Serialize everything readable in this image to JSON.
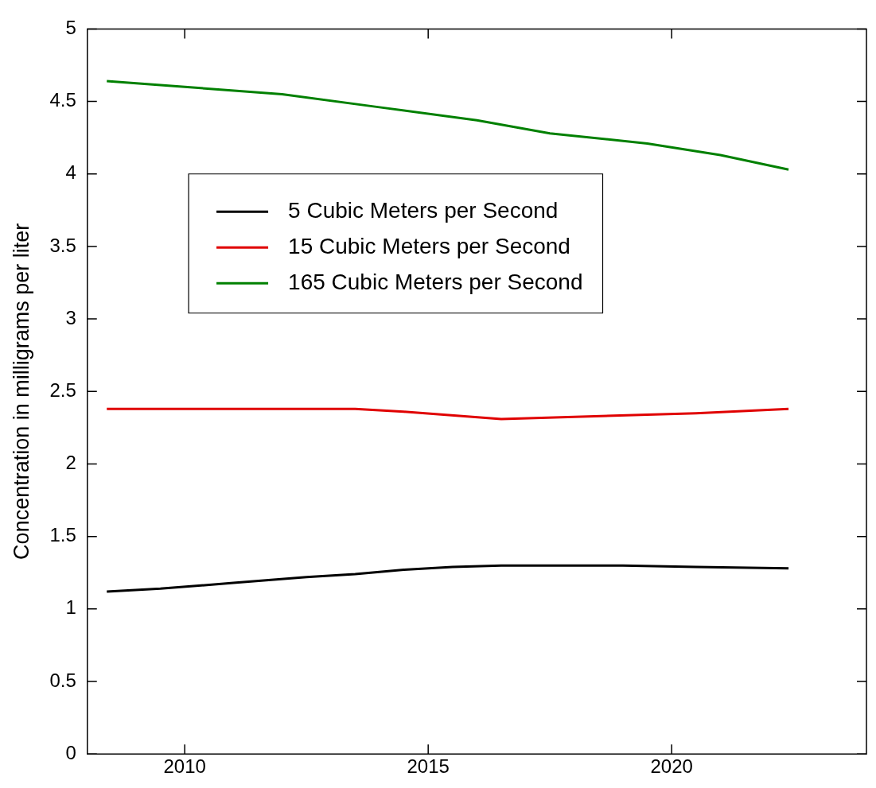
{
  "chart_data": {
    "type": "line",
    "ylabel": "Concentration in milligrams per liter",
    "xlim": [
      2008,
      2024
    ],
    "xticks": [
      2010,
      2015,
      2020
    ],
    "ylim": [
      0,
      5
    ],
    "yticks": [
      0,
      0.5,
      1,
      1.5,
      2,
      2.5,
      3,
      3.5,
      4,
      4.5,
      5
    ],
    "grid": false,
    "legend": "top",
    "marker": "none",
    "line_style": "solid",
    "series": [
      {
        "name": "5 Cubic Meters per Second",
        "color": "#000000",
        "x": [
          2008.4,
          2009.5,
          2011,
          2012.5,
          2013.5,
          2014.5,
          2015.5,
          2016.5,
          2019,
          2020.5,
          2022.4
        ],
        "values": [
          1.12,
          1.14,
          1.18,
          1.22,
          1.24,
          1.27,
          1.29,
          1.3,
          1.3,
          1.29,
          1.28
        ]
      },
      {
        "name": "15 Cubic Meters per Second",
        "color": "#e00000",
        "x": [
          2008.4,
          2011,
          2013.5,
          2014.5,
          2016.5,
          2019.5,
          2020.5,
          2022.4
        ],
        "values": [
          2.38,
          2.38,
          2.38,
          2.36,
          2.31,
          2.34,
          2.35,
          2.38
        ]
      },
      {
        "name": "165 Cubic Meters per Second",
        "color": "#008000",
        "x": [
          2008.4,
          2010,
          2012,
          2014,
          2016,
          2017.5,
          2019.5,
          2021,
          2022.4
        ],
        "values": [
          4.64,
          4.6,
          4.55,
          4.46,
          4.37,
          4.28,
          4.21,
          4.13,
          4.03
        ]
      }
    ]
  }
}
